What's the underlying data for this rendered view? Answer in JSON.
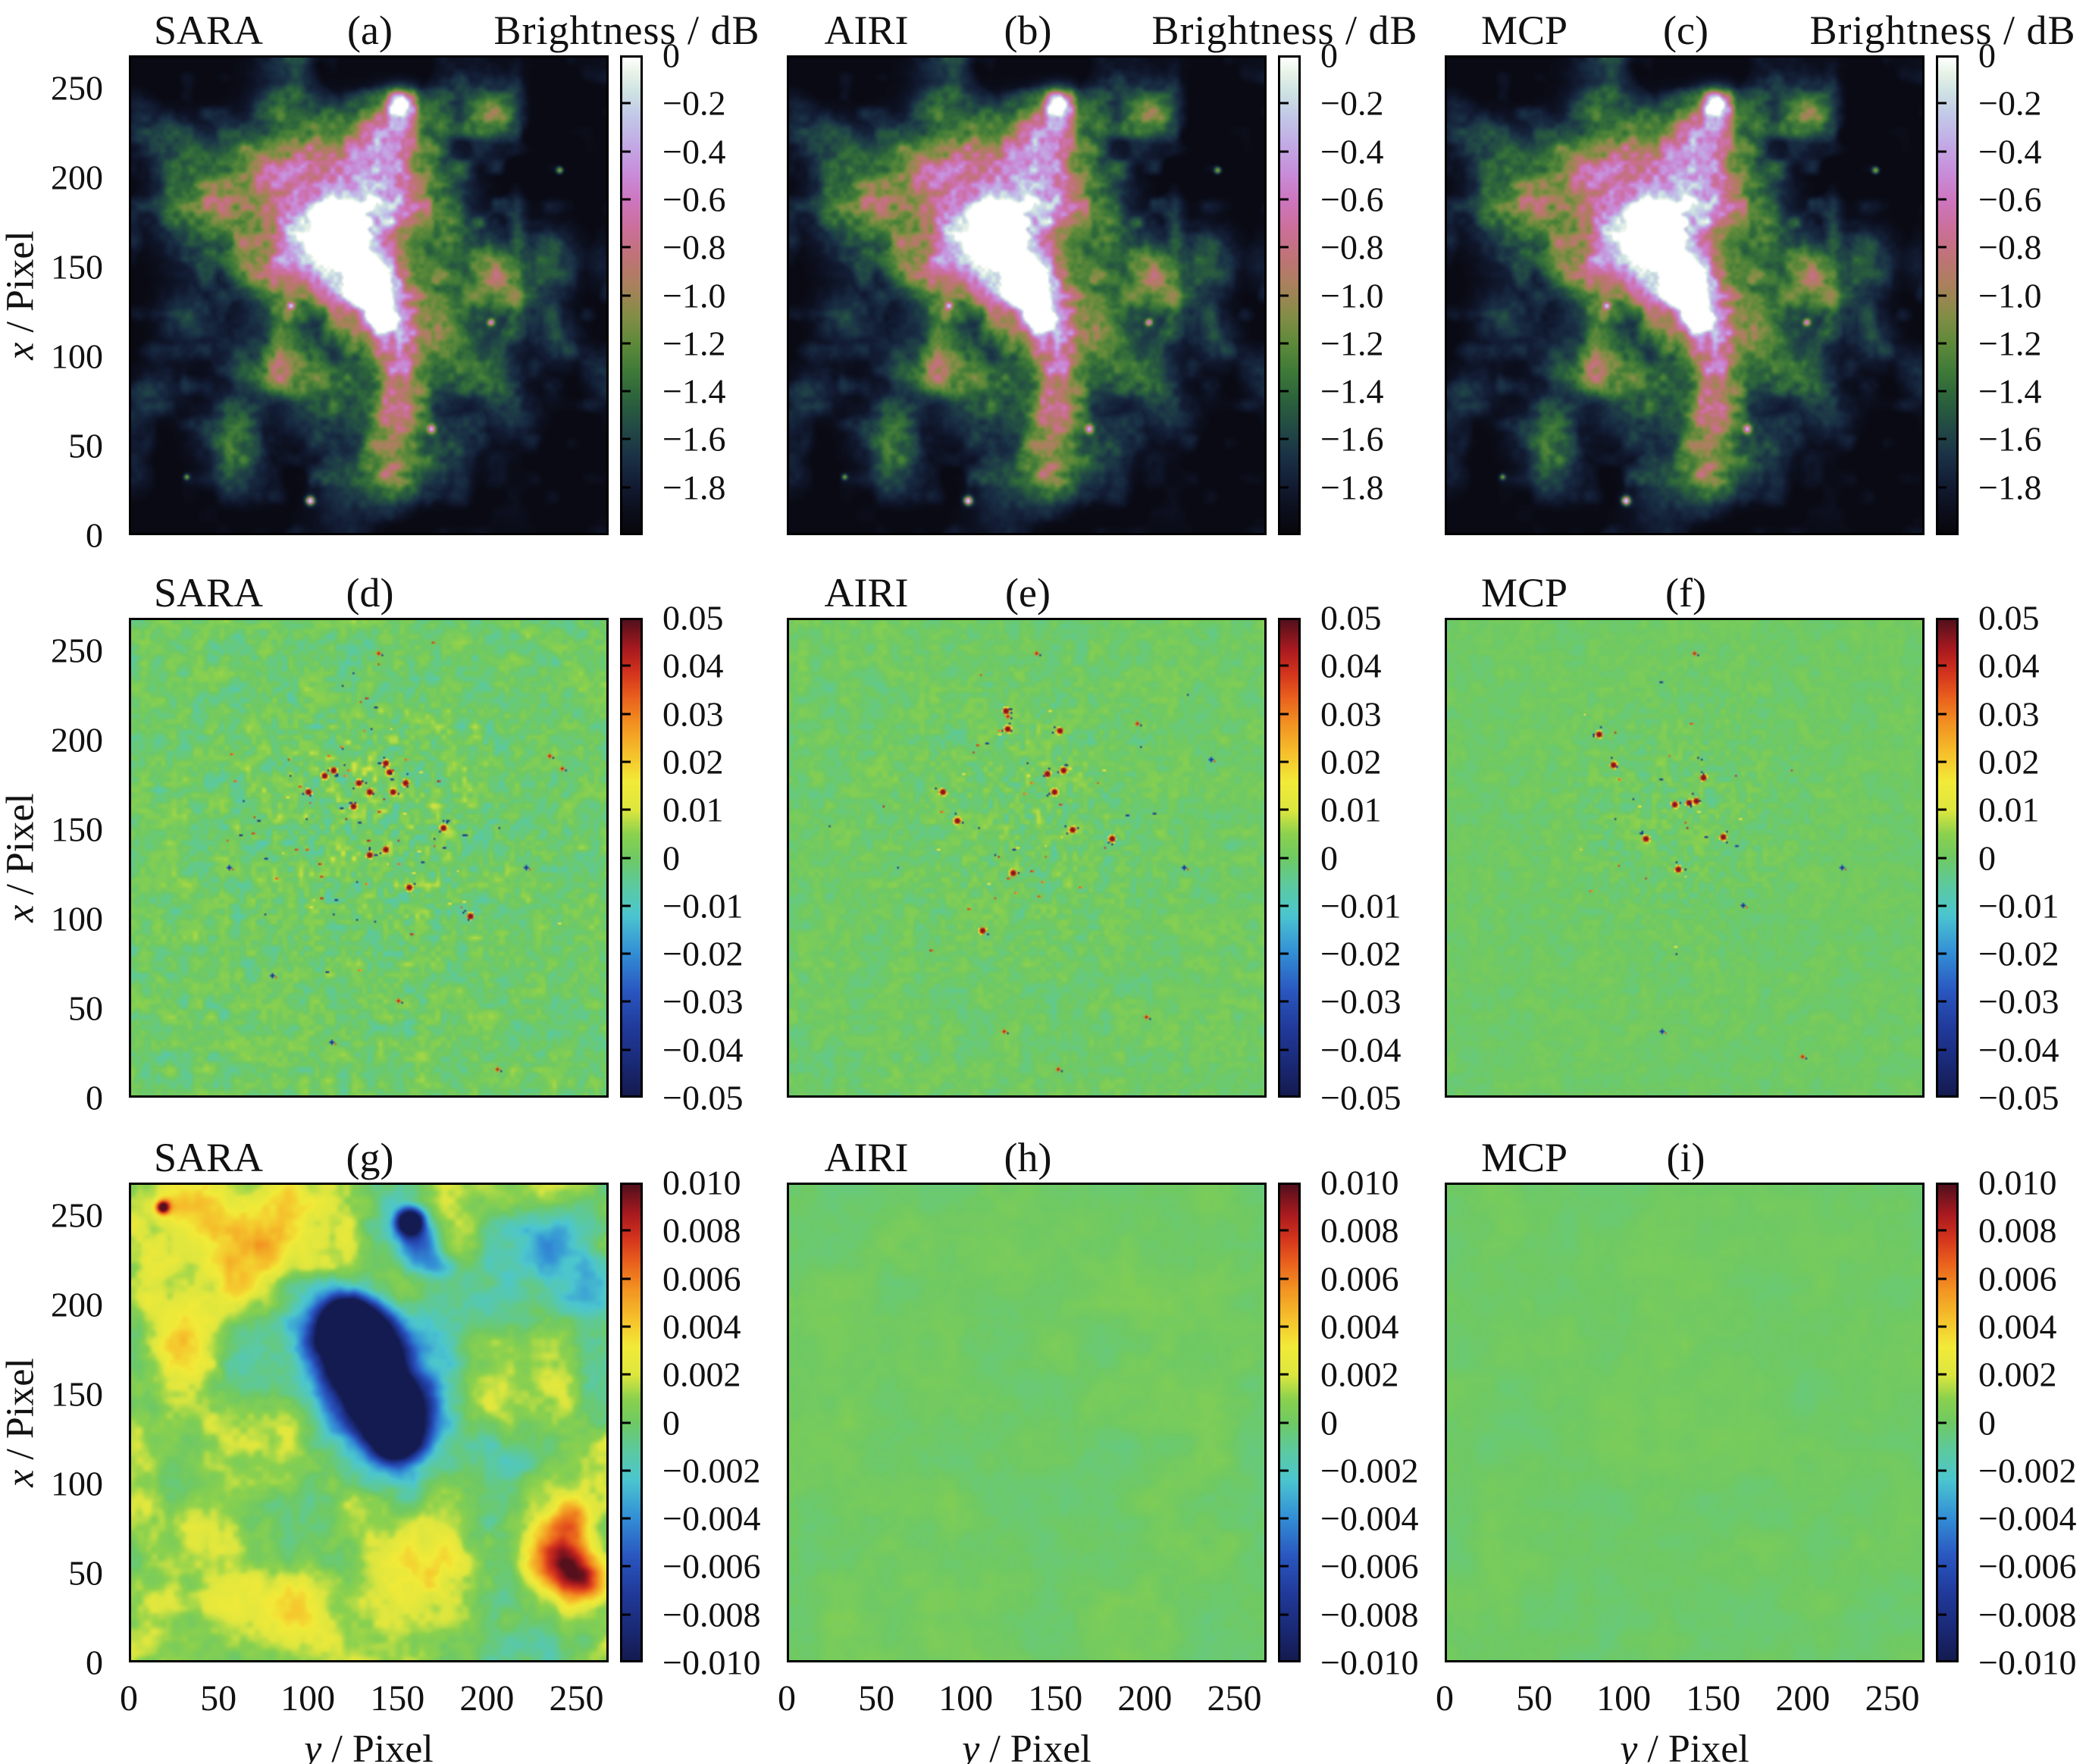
{
  "chart_data": {
    "type": "heatmap",
    "grid": [
      3,
      3
    ],
    "description": "3x3 grid comparing SARA, AIRI and MCP radio-interferometric reconstructions: top row reconstructed brightness images (log scale 0 to -2 dB), middle row residual maps (±0.05), bottom row smoothed error maps (±0.010).",
    "axes": {
      "ylabel_var": "x",
      "ylabel_rest": " / Pixel",
      "xlabel_var": "y",
      "xlabel_rest": " / Pixel",
      "x_range": [
        0,
        268
      ],
      "y_range": [
        0,
        268
      ],
      "x_ticks": [
        {
          "t": "0",
          "p": 0
        },
        {
          "t": "50",
          "p": 0.1866
        },
        {
          "t": "100",
          "p": 0.3731
        },
        {
          "t": "150",
          "p": 0.5597
        },
        {
          "t": "200",
          "p": 0.7463
        },
        {
          "t": "250",
          "p": 0.9328
        }
      ],
      "y_ticks": [
        {
          "t": "250",
          "p": 0.0672
        },
        {
          "t": "200",
          "p": 0.2537
        },
        {
          "t": "150",
          "p": 0.4403
        },
        {
          "t": "100",
          "p": 0.6269
        },
        {
          "t": "50",
          "p": 0.8134
        },
        {
          "t": "0",
          "p": 1
        }
      ]
    },
    "cbars": {
      "row1": {
        "title": "Brightness / dB",
        "range": [
          0,
          -2
        ],
        "ticks": [
          {
            "t": "0",
            "p": 0
          },
          {
            "t": "−0.2",
            "p": 0.1
          },
          {
            "t": "−0.4",
            "p": 0.2
          },
          {
            "t": "−0.6",
            "p": 0.3
          },
          {
            "t": "−0.8",
            "p": 0.4
          },
          {
            "t": "−1.0",
            "p": 0.5
          },
          {
            "t": "−1.2",
            "p": 0.6
          },
          {
            "t": "−1.4",
            "p": 0.7
          },
          {
            "t": "−1.6",
            "p": 0.8
          },
          {
            "t": "−1.8",
            "p": 0.9
          }
        ]
      },
      "row2": {
        "range": [
          0.05,
          -0.05
        ],
        "ticks": [
          {
            "t": "0.05",
            "p": 0
          },
          {
            "t": "0.04",
            "p": 0.1
          },
          {
            "t": "0.03",
            "p": 0.2
          },
          {
            "t": "0.02",
            "p": 0.3
          },
          {
            "t": "0.01",
            "p": 0.4
          },
          {
            "t": "0",
            "p": 0.5
          },
          {
            "t": "−0.01",
            "p": 0.6
          },
          {
            "t": "−0.02",
            "p": 0.7
          },
          {
            "t": "−0.03",
            "p": 0.8
          },
          {
            "t": "−0.04",
            "p": 0.9
          },
          {
            "t": "−0.05",
            "p": 1
          }
        ]
      },
      "row3": {
        "range": [
          0.01,
          -0.01
        ],
        "ticks": [
          {
            "t": "0.010",
            "p": 0
          },
          {
            "t": "0.008",
            "p": 0.1
          },
          {
            "t": "0.006",
            "p": 0.2
          },
          {
            "t": "0.004",
            "p": 0.3
          },
          {
            "t": "0.002",
            "p": 0.4
          },
          {
            "t": "0",
            "p": 0.5
          },
          {
            "t": "−0.002",
            "p": 0.6
          },
          {
            "t": "−0.004",
            "p": 0.7
          },
          {
            "t": "−0.006",
            "p": 0.8
          },
          {
            "t": "−0.008",
            "p": 0.9
          },
          {
            "t": "−0.010",
            "p": 1
          }
        ]
      }
    },
    "colormap_nebula": [
      [
        0,
        "#07070c"
      ],
      [
        0.05,
        "#0c0f1d"
      ],
      [
        0.1,
        "#121c33"
      ],
      [
        0.16,
        "#1a3145"
      ],
      [
        0.22,
        "#224a45"
      ],
      [
        0.28,
        "#2b623c"
      ],
      [
        0.34,
        "#3f7a38"
      ],
      [
        0.4,
        "#5f8a3a"
      ],
      [
        0.46,
        "#868d47"
      ],
      [
        0.52,
        "#a9815c"
      ],
      [
        0.58,
        "#c07377"
      ],
      [
        0.64,
        "#cb6f9a"
      ],
      [
        0.7,
        "#cd76bf"
      ],
      [
        0.76,
        "#c88eda"
      ],
      [
        0.82,
        "#c2abe5"
      ],
      [
        0.88,
        "#c2c9e7"
      ],
      [
        0.93,
        "#cfe3e3"
      ],
      [
        0.97,
        "#e8f3e8"
      ],
      [
        1,
        "#ffffff"
      ]
    ],
    "colormap_diverging": [
      [
        0,
        "#141b50"
      ],
      [
        0.07,
        "#1a2a78"
      ],
      [
        0.14,
        "#203a9a"
      ],
      [
        0.22,
        "#2a57c0"
      ],
      [
        0.3,
        "#338fd6"
      ],
      [
        0.38,
        "#4cc6cf"
      ],
      [
        0.44,
        "#5cc9a0"
      ],
      [
        0.5,
        "#6fc963"
      ],
      [
        0.55,
        "#8bd14e"
      ],
      [
        0.6,
        "#dde63f"
      ],
      [
        0.66,
        "#f2ea38"
      ],
      [
        0.72,
        "#f5c02c"
      ],
      [
        0.78,
        "#f29422"
      ],
      [
        0.84,
        "#e95e1d"
      ],
      [
        0.89,
        "#d2331d"
      ],
      [
        0.94,
        "#a81a1f"
      ],
      [
        1,
        "#54101c"
      ]
    ],
    "nebula_features": [
      [
        0.435,
        0.345,
        0.028,
        1.05
      ],
      [
        0.455,
        0.385,
        0.022,
        0.9
      ],
      [
        0.5,
        0.475,
        0.028,
        1.0
      ],
      [
        0.525,
        0.55,
        0.018,
        0.8
      ],
      [
        0.565,
        0.095,
        0.02,
        0.9
      ],
      [
        0.43,
        0.335,
        0.085,
        0.52
      ],
      [
        0.475,
        0.44,
        0.075,
        0.5
      ],
      [
        0.52,
        0.52,
        0.065,
        0.48
      ],
      [
        0.55,
        0.3,
        0.055,
        0.42
      ],
      [
        0.375,
        0.4,
        0.06,
        0.42
      ],
      [
        0.56,
        0.14,
        0.045,
        0.5
      ],
      [
        0.555,
        0.62,
        0.045,
        0.42
      ],
      [
        0.565,
        0.72,
        0.038,
        0.38
      ],
      [
        0.3,
        0.47,
        0.045,
        0.33
      ],
      [
        0.52,
        0.2,
        0.05,
        0.38
      ],
      [
        0.25,
        0.28,
        0.09,
        0.26
      ],
      [
        0.15,
        0.33,
        0.075,
        0.24
      ],
      [
        0.33,
        0.22,
        0.075,
        0.25
      ],
      [
        0.45,
        0.2,
        0.07,
        0.22
      ],
      [
        0.64,
        0.25,
        0.055,
        0.22
      ],
      [
        0.7,
        0.42,
        0.07,
        0.23
      ],
      [
        0.8,
        0.5,
        0.06,
        0.21
      ],
      [
        0.88,
        0.42,
        0.05,
        0.19
      ],
      [
        0.62,
        0.55,
        0.06,
        0.23
      ],
      [
        0.68,
        0.65,
        0.06,
        0.21
      ],
      [
        0.52,
        0.78,
        0.07,
        0.21
      ],
      [
        0.38,
        0.72,
        0.06,
        0.2
      ],
      [
        0.28,
        0.62,
        0.055,
        0.2
      ],
      [
        0.12,
        0.55,
        0.05,
        0.18
      ],
      [
        0.2,
        0.8,
        0.055,
        0.18
      ],
      [
        0.65,
        0.85,
        0.05,
        0.18
      ],
      [
        0.8,
        0.75,
        0.045,
        0.16
      ],
      [
        0.08,
        0.18,
        0.045,
        0.18
      ],
      [
        0.55,
        0.88,
        0.045,
        0.16
      ],
      [
        0.75,
        0.12,
        0.04,
        0.16
      ],
      [
        0.9,
        0.6,
        0.04,
        0.15
      ],
      [
        0.05,
        0.7,
        0.04,
        0.15
      ],
      [
        0.375,
        0.93,
        0.006,
        0.8
      ],
      [
        0.63,
        0.78,
        0.006,
        0.7
      ],
      [
        0.755,
        0.555,
        0.005,
        0.6
      ],
      [
        0.335,
        0.52,
        0.005,
        0.55
      ],
      [
        0.9,
        0.235,
        0.005,
        0.5
      ],
      [
        0.115,
        0.88,
        0.004,
        0.45
      ]
    ],
    "panels": [
      {
        "id": "a",
        "method": "SARA",
        "tag": "(a)",
        "kind": "nebula",
        "seed": 11,
        "cbar_key": "row1",
        "content": "SARA reconstructed image; nebula filaments in green, bright core in pink/white, brightness 0 to -2 dB"
      },
      {
        "id": "b",
        "method": "AIRI",
        "tag": "(b)",
        "kind": "nebula",
        "seed": 11,
        "cbar_key": "row1",
        "content": "AIRI reconstructed image; visually identical nebula structure, brightness 0 to -2 dB"
      },
      {
        "id": "c",
        "method": "MCP",
        "tag": "(c)",
        "kind": "nebula",
        "seed": 11,
        "cbar_key": "row1",
        "content": "MCP reconstructed image; visually identical nebula structure, brightness 0 to -2 dB"
      },
      {
        "id": "d",
        "method": "SARA",
        "tag": "(d)",
        "kind": "residual",
        "seed": 104,
        "cbar_key": "row2",
        "mottle": 0.17,
        "cluster": {
          "cx": 0.5,
          "cy": 0.42,
          "sigma": 0.115,
          "big": 15,
          "small": 85
        },
        "dots": [
          [
            0.52,
            0.068,
            "r"
          ],
          [
            0.88,
            0.285,
            "r"
          ],
          [
            0.905,
            0.31,
            "r"
          ],
          [
            0.83,
            0.52,
            "b"
          ],
          [
            0.56,
            0.8,
            "r"
          ],
          [
            0.77,
            0.945,
            "r"
          ],
          [
            0.42,
            0.885,
            "b"
          ],
          [
            0.295,
            0.745,
            "b"
          ],
          [
            0.205,
            0.52,
            "b"
          ]
        ],
        "content": "SARA residual map ±0.05; strong red/blue speckle errors clustered on bright sources"
      },
      {
        "id": "e",
        "method": "AIRI",
        "tag": "(e)",
        "kind": "residual",
        "seed": 205,
        "cbar_key": "row2",
        "mottle": 0.11,
        "cluster": {
          "cx": 0.5,
          "cy": 0.4,
          "sigma": 0.1,
          "big": 12,
          "small": 45
        },
        "dots": [
          [
            0.52,
            0.068,
            "r"
          ],
          [
            0.46,
            0.2,
            "r"
          ],
          [
            0.73,
            0.215,
            "r"
          ],
          [
            0.885,
            0.29,
            "b"
          ],
          [
            0.83,
            0.52,
            "b"
          ],
          [
            0.75,
            0.835,
            "r"
          ],
          [
            0.565,
            0.945,
            "r"
          ],
          [
            0.45,
            0.865,
            "r"
          ]
        ],
        "content": "AIRI residual map ±0.05; fewer speckle errors than SARA"
      },
      {
        "id": "f",
        "method": "MCP",
        "tag": "(f)",
        "kind": "residual",
        "seed": 306,
        "cbar_key": "row2",
        "mottle": 0.07,
        "cluster": {
          "cx": 0.49,
          "cy": 0.4,
          "sigma": 0.095,
          "big": 9,
          "small": 28
        },
        "dots": [
          [
            0.52,
            0.068,
            "r"
          ],
          [
            0.83,
            0.52,
            "b"
          ],
          [
            0.62,
            0.6,
            "b"
          ],
          [
            0.745,
            0.915,
            "r"
          ],
          [
            0.45,
            0.865,
            "b"
          ]
        ],
        "content": "MCP residual map ±0.05; smallest speckle errors"
      },
      {
        "id": "g",
        "method": "SARA",
        "tag": "(g)",
        "kind": "smooth",
        "seed": 401,
        "cbar_key": "row3",
        "noise": [
          0.36,
          0.16
        ],
        "features": [
          [
            0.455,
            0.29,
            0.035,
            -1.6
          ],
          [
            0.475,
            0.33,
            0.05,
            -1.8
          ],
          [
            0.5,
            0.38,
            0.04,
            -1.6
          ],
          [
            0.52,
            0.43,
            0.025,
            -1.2
          ],
          [
            0.545,
            0.475,
            0.045,
            -1.7
          ],
          [
            0.555,
            0.53,
            0.03,
            -1.3
          ],
          [
            0.5,
            0.4,
            0.1,
            -0.45
          ],
          [
            0.55,
            0.5,
            0.08,
            -0.4
          ],
          [
            0.4,
            0.3,
            0.06,
            -0.35
          ],
          [
            0.585,
            0.075,
            0.018,
            -1.5
          ],
          [
            0.6,
            0.11,
            0.03,
            -0.5
          ],
          [
            0.63,
            0.16,
            0.03,
            -0.3
          ],
          [
            0.88,
            0.12,
            0.05,
            -0.3
          ],
          [
            0.93,
            0.22,
            0.05,
            -0.25
          ],
          [
            0.9,
            0.78,
            0.05,
            0.75
          ],
          [
            0.955,
            0.83,
            0.04,
            0.65
          ],
          [
            0.93,
            0.7,
            0.03,
            0.4
          ],
          [
            0.065,
            0.045,
            0.01,
            0.9
          ],
          [
            0.12,
            0.08,
            0.1,
            0.35
          ],
          [
            0.3,
            0.12,
            0.08,
            0.3
          ],
          [
            0.1,
            0.32,
            0.07,
            0.3
          ],
          [
            0.22,
            0.55,
            0.09,
            0.28
          ],
          [
            0.12,
            0.75,
            0.08,
            0.3
          ],
          [
            0.35,
            0.88,
            0.08,
            0.28
          ],
          [
            0.6,
            0.8,
            0.07,
            0.25
          ],
          [
            0.75,
            0.45,
            0.06,
            0.22
          ],
          [
            0.48,
            0.68,
            0.06,
            0.22
          ],
          [
            0.55,
            0.22,
            0.05,
            0.2
          ]
        ],
        "content": "SARA smoothed error map ±0.010; deep blue negative bowl at nebula core, yellow positive mottling elsewhere"
      },
      {
        "id": "h",
        "method": "AIRI",
        "tag": "(h)",
        "kind": "smooth",
        "seed": 402,
        "cbar_key": "row3",
        "noise": [
          0.08,
          0.05
        ],
        "features": [],
        "content": "AIRI smoothed error map ±0.010; nearly uniform zero (flat green)"
      },
      {
        "id": "i",
        "method": "MCP",
        "tag": "(i)",
        "kind": "smooth",
        "seed": 403,
        "cbar_key": "row3",
        "noise": [
          0.06,
          0.04
        ],
        "features": [],
        "content": "MCP smoothed error map ±0.010; nearly uniform zero (flat green)"
      }
    ]
  }
}
